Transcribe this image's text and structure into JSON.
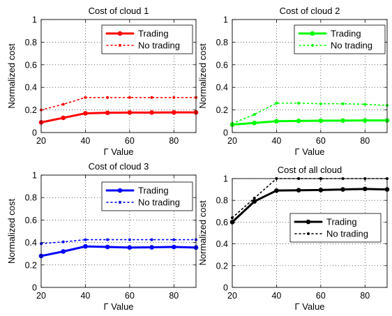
{
  "chart_data": [
    {
      "type": "line",
      "title": "Cost of cloud 1",
      "xlabel": "Γ Value",
      "ylabel": "Normalized cost",
      "xlim": [
        20,
        90
      ],
      "ylim": [
        0,
        1
      ],
      "xticks": [
        "20",
        "40",
        "60",
        "80"
      ],
      "yticks": [
        "0",
        "0.2",
        "0.4",
        "0.6",
        "0.8",
        "1"
      ],
      "grid": true,
      "legend_position": "top-right",
      "x": [
        20,
        30,
        40,
        50,
        60,
        70,
        80,
        90
      ],
      "series": [
        {
          "name": "Trading",
          "style": "solid",
          "color": "#ff0000",
          "values": [
            0.09,
            0.13,
            0.17,
            0.175,
            0.177,
            0.177,
            0.178,
            0.178
          ]
        },
        {
          "name": "No trading",
          "style": "dotted",
          "color": "#ff0000",
          "values": [
            0.2,
            0.25,
            0.31,
            0.31,
            0.31,
            0.31,
            0.31,
            0.31
          ]
        }
      ]
    },
    {
      "type": "line",
      "title": "Cost of cloud 2",
      "xlabel": "Γ Value",
      "ylabel": "Normalized cost",
      "xlim": [
        20,
        90
      ],
      "ylim": [
        0,
        1
      ],
      "xticks": [
        "20",
        "40",
        "60",
        "80"
      ],
      "yticks": [
        "0",
        "0.2",
        "0.4",
        "0.6",
        "0.8",
        "1"
      ],
      "grid": true,
      "legend_position": "top-right",
      "x": [
        20,
        30,
        40,
        50,
        60,
        70,
        80,
        90
      ],
      "series": [
        {
          "name": "Trading",
          "style": "solid",
          "color": "#00ff00",
          "values": [
            0.07,
            0.085,
            0.1,
            0.103,
            0.105,
            0.106,
            0.107,
            0.107
          ]
        },
        {
          "name": "No trading",
          "style": "dotted",
          "color": "#00ff00",
          "values": [
            0.08,
            0.16,
            0.26,
            0.26,
            0.255,
            0.255,
            0.25,
            0.24
          ]
        }
      ]
    },
    {
      "type": "line",
      "title": "Cost of cloud 3",
      "xlabel": "Γ Value",
      "ylabel": "Normalized cost",
      "xlim": [
        20,
        90
      ],
      "ylim": [
        0,
        1
      ],
      "xticks": [
        "20",
        "40",
        "60",
        "80"
      ],
      "yticks": [
        "0",
        "0.2",
        "0.4",
        "0.6",
        "0.8",
        "1"
      ],
      "grid": true,
      "legend_position": "top-right",
      "x": [
        20,
        30,
        40,
        50,
        60,
        70,
        80,
        90
      ],
      "series": [
        {
          "name": "Trading",
          "style": "solid",
          "color": "#0000ff",
          "values": [
            0.28,
            0.32,
            0.365,
            0.36,
            0.355,
            0.357,
            0.36,
            0.355
          ]
        },
        {
          "name": "No trading",
          "style": "dotted",
          "color": "#0000ff",
          "values": [
            0.39,
            0.405,
            0.425,
            0.425,
            0.425,
            0.425,
            0.425,
            0.425
          ]
        }
      ]
    },
    {
      "type": "line",
      "title": "Cost of all cloud",
      "xlabel": "Γ Value",
      "ylabel": "Normalized cost",
      "xlim": [
        20,
        90
      ],
      "ylim": [
        0,
        1
      ],
      "xticks": [
        "20",
        "40",
        "60",
        "80"
      ],
      "yticks": [
        "0",
        "0.2",
        "0.4",
        "0.6",
        "0.8",
        "1"
      ],
      "grid": true,
      "legend_position": "center-right",
      "x": [
        20,
        30,
        40,
        50,
        60,
        70,
        80,
        90
      ],
      "series": [
        {
          "name": "Trading",
          "style": "solid",
          "color": "#000000",
          "values": [
            0.6,
            0.79,
            0.89,
            0.893,
            0.895,
            0.9,
            0.905,
            0.9
          ]
        },
        {
          "name": "No trading",
          "style": "dotted",
          "color": "#000000",
          "values": [
            0.64,
            0.82,
            1.0,
            1.0,
            1.0,
            1.0,
            1.0,
            1.0
          ]
        }
      ]
    }
  ]
}
